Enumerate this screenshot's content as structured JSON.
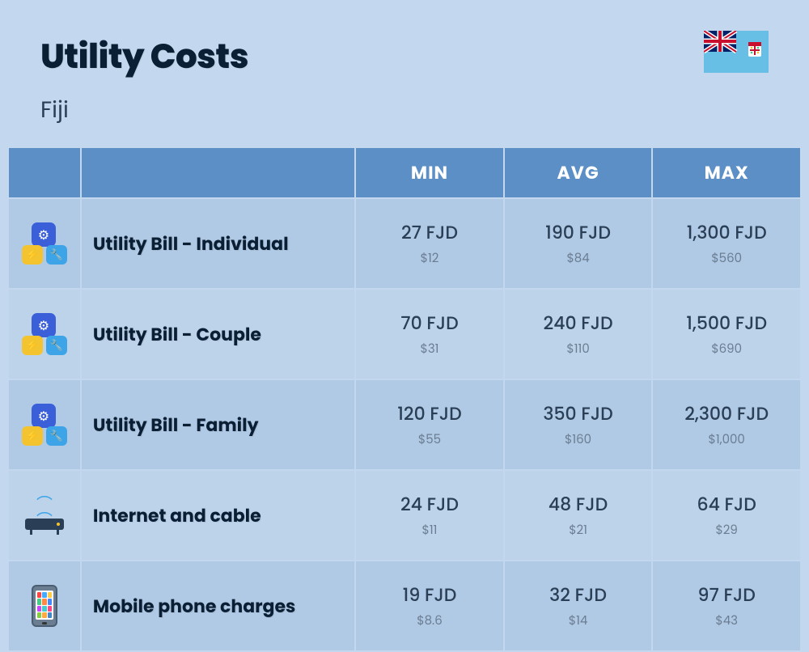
{
  "header": {
    "title": "Utility Costs",
    "country": "Fiji"
  },
  "columns": {
    "min": "MIN",
    "avg": "AVG",
    "max": "MAX"
  },
  "rows": [
    {
      "icon": "utility",
      "label": "Utility Bill - Individual",
      "min_primary": "27 FJD",
      "min_secondary": "$12",
      "avg_primary": "190 FJD",
      "avg_secondary": "$84",
      "max_primary": "1,300 FJD",
      "max_secondary": "$560"
    },
    {
      "icon": "utility",
      "label": "Utility Bill - Couple",
      "min_primary": "70 FJD",
      "min_secondary": "$31",
      "avg_primary": "240 FJD",
      "avg_secondary": "$110",
      "max_primary": "1,500 FJD",
      "max_secondary": "$690"
    },
    {
      "icon": "utility",
      "label": "Utility Bill - Family",
      "min_primary": "120 FJD",
      "min_secondary": "$55",
      "avg_primary": "350 FJD",
      "avg_secondary": "$160",
      "max_primary": "2,300 FJD",
      "max_secondary": "$1,000"
    },
    {
      "icon": "router",
      "label": "Internet and cable",
      "min_primary": "24 FJD",
      "min_secondary": "$11",
      "avg_primary": "48 FJD",
      "avg_secondary": "$21",
      "max_primary": "64 FJD",
      "max_secondary": "$29"
    },
    {
      "icon": "phone",
      "label": "Mobile phone charges",
      "min_primary": "19 FJD",
      "min_secondary": "$8.6",
      "avg_primary": "32 FJD",
      "avg_secondary": "$14",
      "max_primary": "97 FJD",
      "max_secondary": "$43"
    }
  ],
  "colors": {
    "page_bg": "#c3d8ee",
    "header_bg": "#5b8fc6",
    "row_bg": "#b0c9e5",
    "row_alt_bg": "#bdd3ea",
    "text_primary": "#2a3f55",
    "text_secondary": "#6b7d91",
    "text_title": "#0a1f33"
  },
  "phone_app_colors": [
    "#f44",
    "#4af",
    "#fc4",
    "#4c8",
    "#f84",
    "#48f",
    "#c4f",
    "#4cc",
    "#f48",
    "#8c4",
    "#fa4",
    "#48c"
  ]
}
